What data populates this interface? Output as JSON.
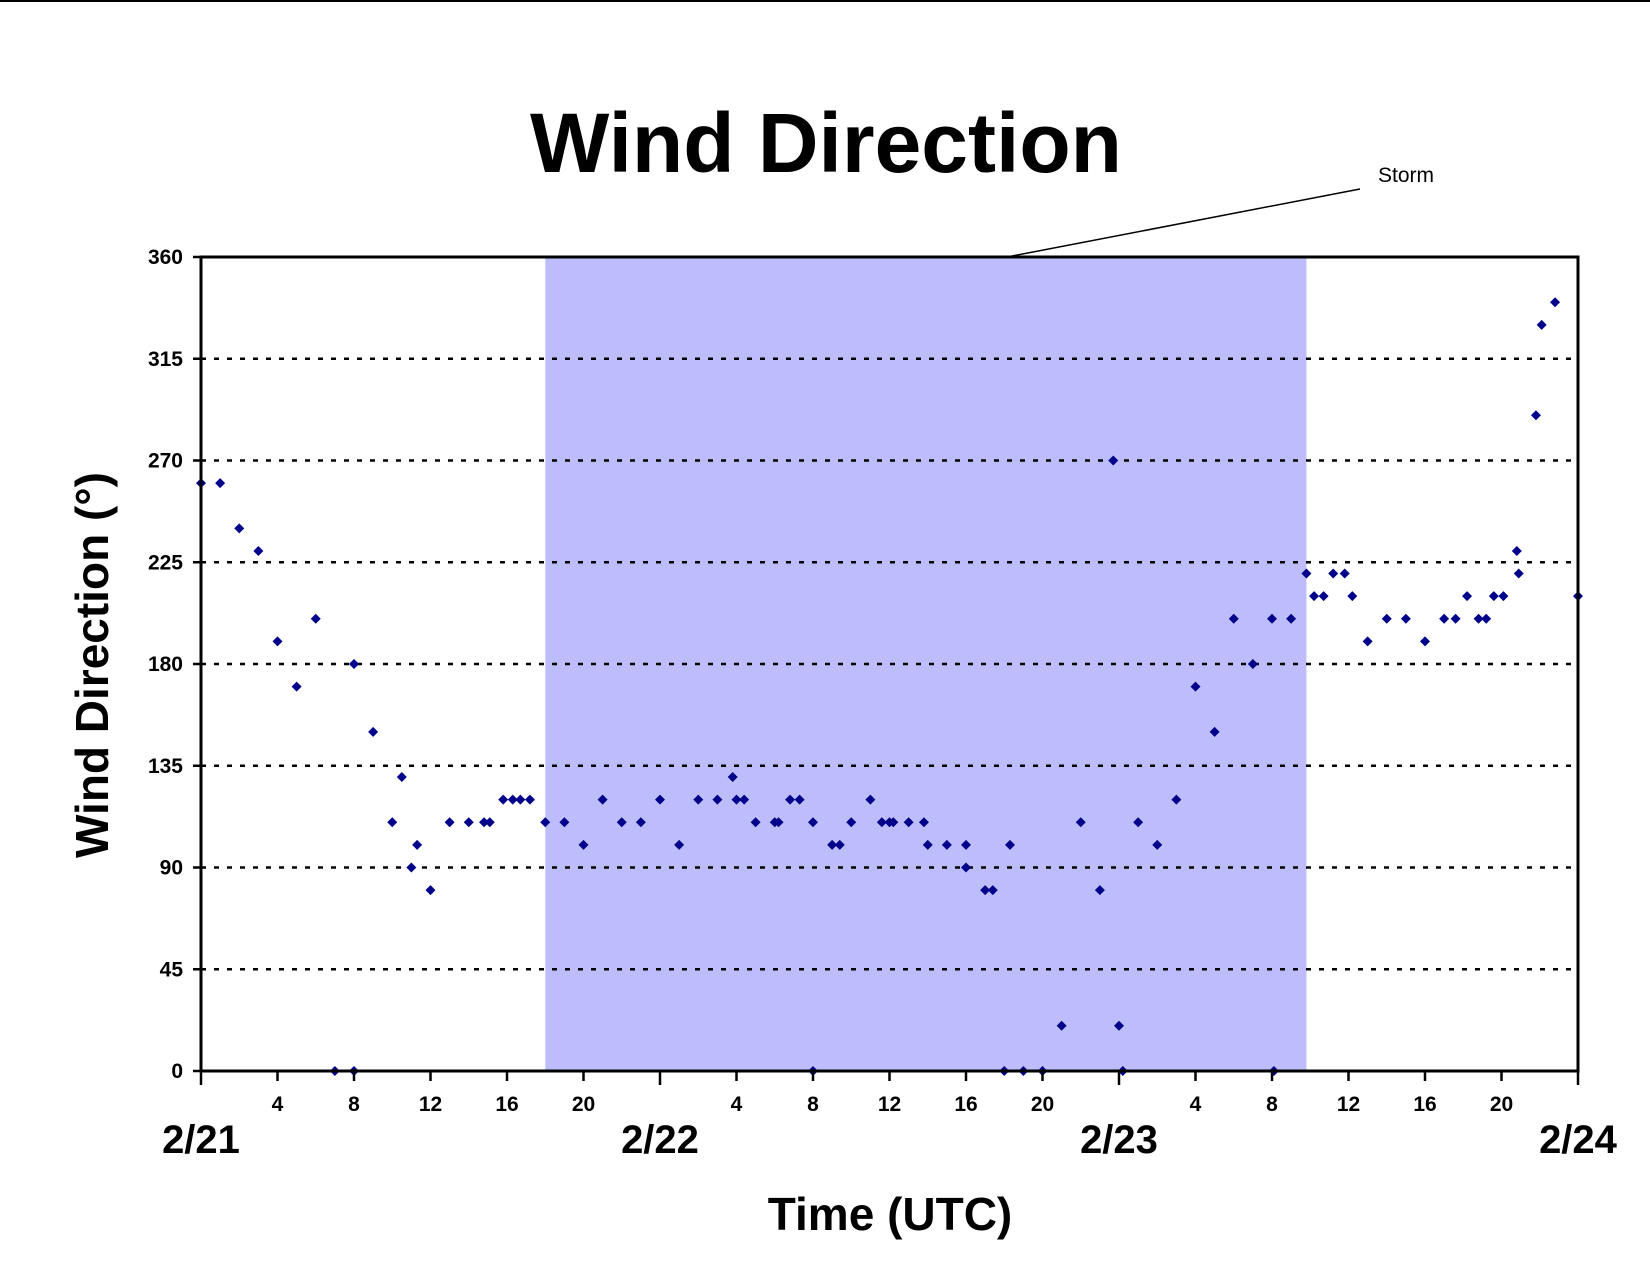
{
  "chart_data": {
    "type": "scatter",
    "title": "Wind Direction",
    "xlabel": "Time (UTC)",
    "ylabel": "Wind Direction (°)",
    "x_unit": "hours",
    "xlim": [
      0,
      72
    ],
    "ylim": [
      0,
      360
    ],
    "y_ticks": [
      0,
      45,
      90,
      135,
      180,
      225,
      270,
      315,
      360
    ],
    "x_ticks": [
      {
        "x": 0,
        "label": ""
      },
      {
        "x": 4,
        "label": "4"
      },
      {
        "x": 8,
        "label": "8"
      },
      {
        "x": 12,
        "label": "12"
      },
      {
        "x": 16,
        "label": "16"
      },
      {
        "x": 20,
        "label": "20"
      },
      {
        "x": 24,
        "label": ""
      },
      {
        "x": 28,
        "label": "4"
      },
      {
        "x": 32,
        "label": "8"
      },
      {
        "x": 36,
        "label": "12"
      },
      {
        "x": 40,
        "label": "16"
      },
      {
        "x": 44,
        "label": "20"
      },
      {
        "x": 48,
        "label": ""
      },
      {
        "x": 52,
        "label": "4"
      },
      {
        "x": 56,
        "label": "8"
      },
      {
        "x": 60,
        "label": "12"
      },
      {
        "x": 64,
        "label": "16"
      },
      {
        "x": 68,
        "label": "20"
      },
      {
        "x": 72,
        "label": ""
      }
    ],
    "date_labels": [
      {
        "x": 0,
        "label": "2/21"
      },
      {
        "x": 24,
        "label": "2/22"
      },
      {
        "x": 48,
        "label": "2/23"
      },
      {
        "x": 72,
        "label": "2/24"
      }
    ],
    "grid": "horizontal dashed",
    "marker_color": "#00008b",
    "storm_band": {
      "label": "Storm",
      "x_start": 18,
      "x_end": 57.8,
      "color": "#bdbdfb"
    },
    "points": [
      [
        0,
        260
      ],
      [
        1,
        260
      ],
      [
        2,
        240
      ],
      [
        3,
        230
      ],
      [
        4,
        190
      ],
      [
        5,
        170
      ],
      [
        6,
        200
      ],
      [
        7,
        0
      ],
      [
        8,
        0
      ],
      [
        8,
        180
      ],
      [
        9,
        150
      ],
      [
        10,
        110
      ],
      [
        10.5,
        130
      ],
      [
        11,
        90
      ],
      [
        11.3,
        100
      ],
      [
        12,
        80
      ],
      [
        13,
        110
      ],
      [
        14,
        110
      ],
      [
        14.8,
        110
      ],
      [
        15.1,
        110
      ],
      [
        15.8,
        120
      ],
      [
        16.3,
        120
      ],
      [
        16.7,
        120
      ],
      [
        17.2,
        120
      ],
      [
        18,
        110
      ],
      [
        19,
        110
      ],
      [
        20,
        100
      ],
      [
        21,
        120
      ],
      [
        22,
        110
      ],
      [
        23,
        110
      ],
      [
        24,
        120
      ],
      [
        25,
        100
      ],
      [
        26,
        120
      ],
      [
        27,
        120
      ],
      [
        27.8,
        130
      ],
      [
        28,
        120
      ],
      [
        28.4,
        120
      ],
      [
        29,
        110
      ],
      [
        30,
        110
      ],
      [
        30.2,
        110
      ],
      [
        30.8,
        120
      ],
      [
        31.3,
        120
      ],
      [
        32,
        110
      ],
      [
        32,
        0
      ],
      [
        33,
        100
      ],
      [
        33.4,
        100
      ],
      [
        34,
        110
      ],
      [
        35,
        120
      ],
      [
        35.6,
        110
      ],
      [
        36,
        110
      ],
      [
        36.2,
        110
      ],
      [
        37,
        110
      ],
      [
        37.8,
        110
      ],
      [
        38,
        100
      ],
      [
        39,
        100
      ],
      [
        40,
        100
      ],
      [
        40,
        90
      ],
      [
        41,
        80
      ],
      [
        41.4,
        80
      ],
      [
        42,
        0
      ],
      [
        42.3,
        100
      ],
      [
        43,
        0
      ],
      [
        44,
        0
      ],
      [
        45,
        20
      ],
      [
        46,
        110
      ],
      [
        47,
        80
      ],
      [
        47.7,
        270
      ],
      [
        48,
        20
      ],
      [
        48.2,
        0
      ],
      [
        49,
        110
      ],
      [
        50,
        100
      ],
      [
        51,
        120
      ],
      [
        52,
        170
      ],
      [
        53,
        150
      ],
      [
        54,
        200
      ],
      [
        55,
        180
      ],
      [
        56,
        200
      ],
      [
        56.1,
        0
      ],
      [
        57,
        200
      ],
      [
        57.8,
        220
      ],
      [
        58.2,
        210
      ],
      [
        58.7,
        210
      ],
      [
        59.2,
        220
      ],
      [
        59.8,
        220
      ],
      [
        60.2,
        210
      ],
      [
        61,
        190
      ],
      [
        62,
        200
      ],
      [
        63,
        200
      ],
      [
        64,
        190
      ],
      [
        65,
        200
      ],
      [
        65.6,
        200
      ],
      [
        66.2,
        210
      ],
      [
        66.8,
        200
      ],
      [
        67.2,
        200
      ],
      [
        67.6,
        210
      ],
      [
        68.1,
        210
      ],
      [
        68.8,
        230
      ],
      [
        68.9,
        220
      ],
      [
        69.8,
        290
      ],
      [
        70.1,
        330
      ],
      [
        70.8,
        340
      ],
      [
        72,
        210
      ]
    ]
  }
}
